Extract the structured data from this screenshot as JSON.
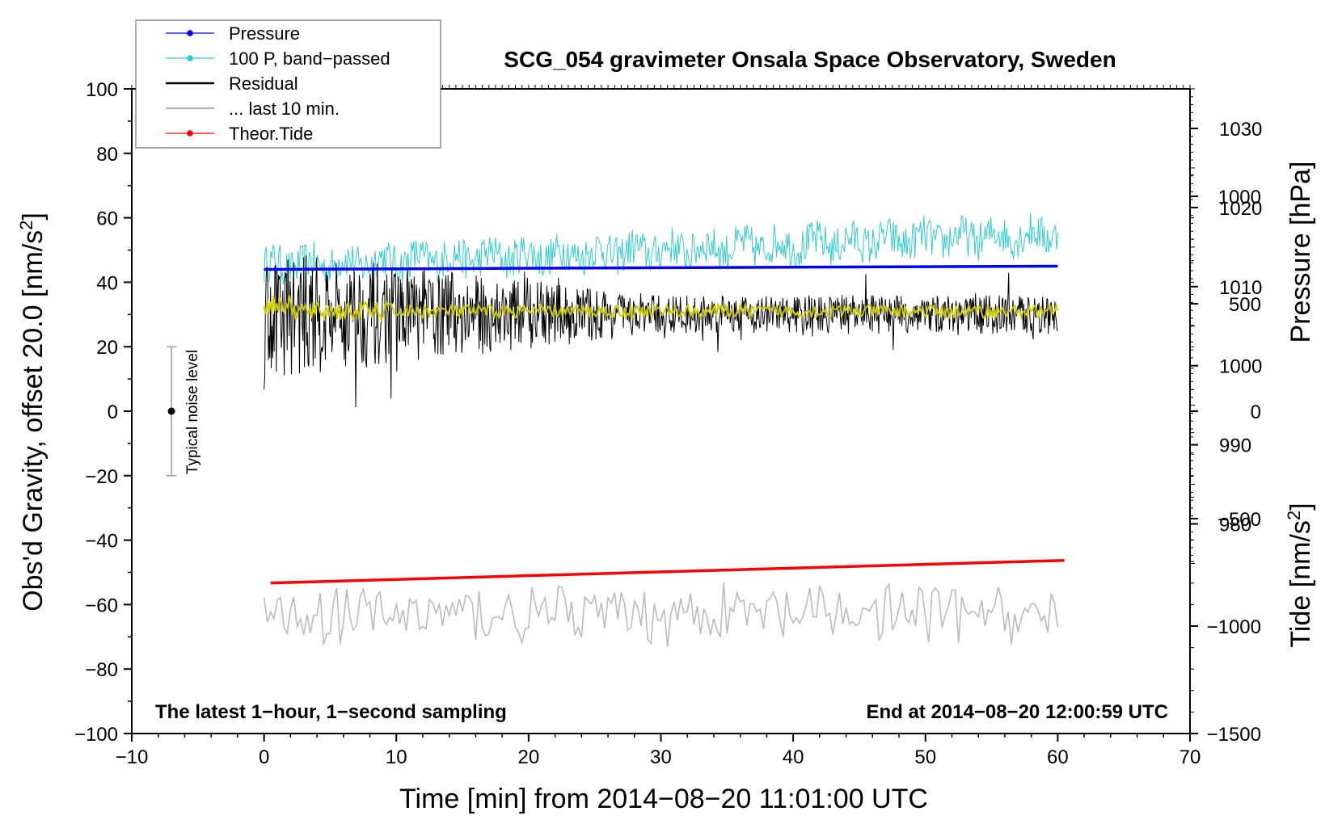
{
  "chart_data": {
    "type": "line",
    "title": "SCG_054 gravimeter Onsala Space Observatory, Sweden",
    "xlabel": "Time [min] from 2014−08−20 11:01:00 UTC",
    "ylabel_left": "Obs'd Gravity, offset 20.0 [nm/s",
    "ylabel_left_sup": "2",
    "ylabel_left_end": "]",
    "ylabel_right_pressure": "Pressure [hPa]",
    "ylabel_right_tide": "Tide [nm/s",
    "ylabel_right_tide_sup": "2",
    "ylabel_right_tide_end": "]",
    "xlim": [
      -10,
      70
    ],
    "ylim_left": [
      -100,
      100
    ],
    "ylim_pressure": [
      953.5,
      1035
    ],
    "ylim_tide": [
      -1500,
      1500
    ],
    "x_ticks": [
      "−10",
      "0",
      "10",
      "20",
      "30",
      "40",
      "50",
      "60",
      "70"
    ],
    "x_tick_values": [
      -10,
      0,
      10,
      20,
      30,
      40,
      50,
      60,
      70
    ],
    "left_ticks": [
      "−100",
      "−80",
      "−60",
      "−40",
      "−20",
      "0",
      "20",
      "40",
      "60",
      "80",
      "100"
    ],
    "left_tick_values": [
      -100,
      -80,
      -60,
      -40,
      -20,
      0,
      20,
      40,
      60,
      80,
      100
    ],
    "pressure_ticks": [
      "980",
      "990",
      "1000",
      "1010",
      "1020",
      "1030"
    ],
    "pressure_tick_values": [
      980,
      990,
      1000,
      1010,
      1020,
      1030
    ],
    "tide_ticks": [
      "−1500",
      "−1000",
      "−500",
      "0",
      "500",
      "1000"
    ],
    "tide_tick_values": [
      -1500,
      -1000,
      -500,
      0,
      500,
      1000
    ],
    "annotation_left": "The latest 1−hour, 1−second sampling",
    "annotation_right": "End at 2014−08−20 12:00:59 UTC",
    "noise_label": "Typical noise level",
    "noise_bar": {
      "x": -7,
      "center": 0,
      "low": -20,
      "high": 20
    },
    "legend": [
      {
        "label": "Pressure",
        "color": "#0000ff",
        "marker": true
      },
      {
        "label": "100 P, band−passed",
        "color": "#33cccc",
        "marker": true
      },
      {
        "label": "Residual",
        "color": "#000000",
        "marker": false
      },
      {
        "label": "... last 10 min.",
        "color": "#bbbbbb",
        "marker": false
      },
      {
        "label": "Theor.Tide",
        "color": "#ff0000",
        "marker": true
      }
    ],
    "series": [
      {
        "name": "Pressure",
        "axis": "left",
        "color": "#0000ff",
        "start": [
          0,
          44.0
        ],
        "end": [
          60,
          45.0
        ]
      },
      {
        "name": "100 P, band−passed",
        "axis": "left",
        "color": "#33cccc",
        "trend_start": [
          0,
          45
        ],
        "trend_end": [
          60,
          55
        ],
        "amplitude": 6
      },
      {
        "name": "Residual",
        "axis": "left",
        "color": "#000000",
        "trend": [
          0,
          30
        ],
        "amplitude_start": 20,
        "amplitude_end": 6
      },
      {
        "name": "Residual smoothed",
        "axis": "left",
        "color": "#cccc00",
        "level": 31
      },
      {
        "name": "... last 10 min.",
        "axis": "left",
        "color": "#bbbbbb",
        "trend": [
          0,
          -63
        ],
        "amplitude": 8
      },
      {
        "name": "Theor.Tide",
        "axis": "left",
        "color": "#ff0000",
        "start": [
          0.5,
          -53.3
        ],
        "end": [
          60.5,
          -46.3
        ]
      }
    ]
  }
}
